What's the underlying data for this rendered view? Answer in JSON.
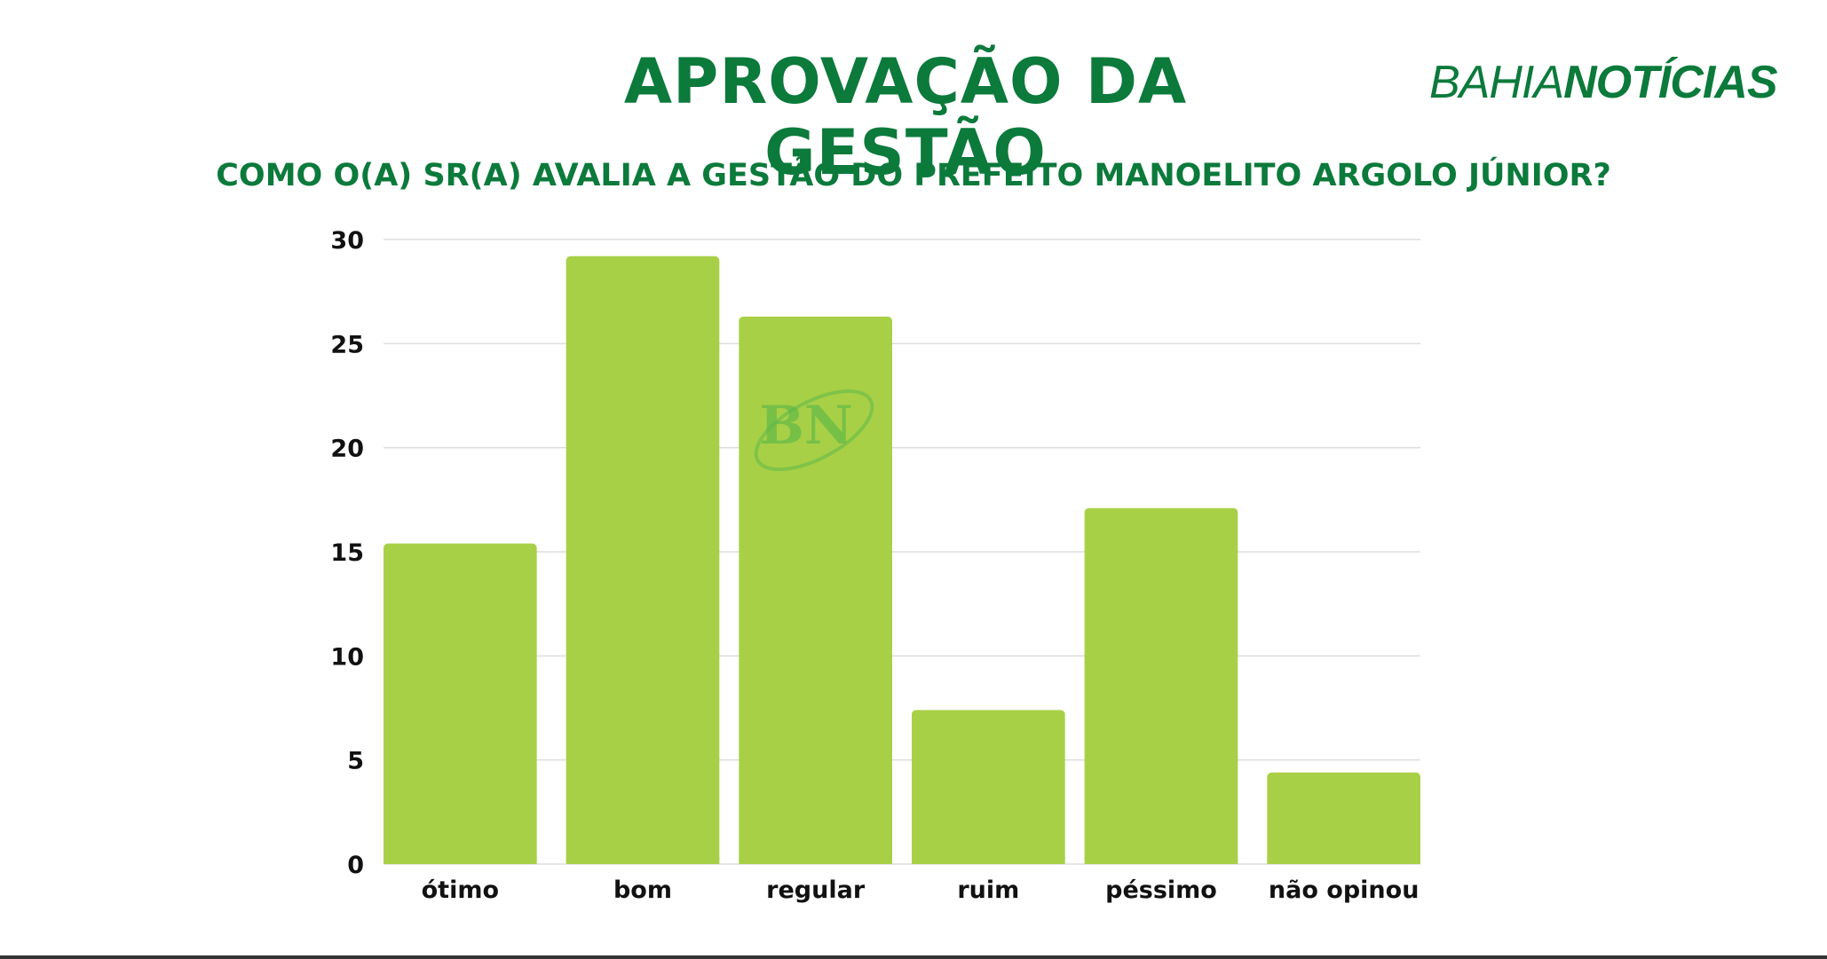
{
  "header": {
    "title": "APROVAÇÃO DA GESTÃO",
    "brand_part1": "BAHIA",
    "brand_part2": "NOTÍCIAS",
    "subtitle": "COMO O(A) SR(A) AVALIA A GESTÃO DO PREFEITO MANOELITO ARGOLO JÚNIOR?"
  },
  "watermark": "BN",
  "colors": {
    "accent": "#0b7a3b",
    "bar": "#a8d046",
    "gridline": "#dddddd",
    "watermark": "#5db84a"
  },
  "chart_data": {
    "type": "bar",
    "categories": [
      "ótimo",
      "bom",
      "regular",
      "ruim",
      "péssimo",
      "não opinou"
    ],
    "values": [
      15.4,
      29.2,
      26.3,
      7.4,
      17.1,
      4.4
    ],
    "ylim": [
      0,
      30
    ],
    "yticks": [
      "0",
      "5",
      "10",
      "15",
      "20",
      "25",
      "30"
    ],
    "grid": true,
    "xlabel": "",
    "ylabel": ""
  }
}
